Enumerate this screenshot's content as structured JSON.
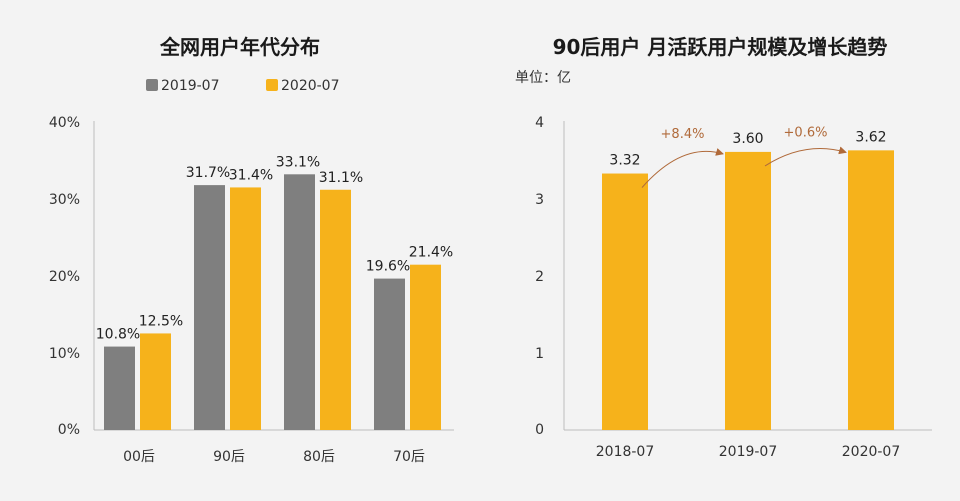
{
  "chart_data": [
    {
      "type": "bar",
      "title": "全网用户年代分布",
      "categories": [
        "00后",
        "90后",
        "80后",
        "70后"
      ],
      "series": [
        {
          "name": "2019-07",
          "values": [
            10.8,
            31.7,
            33.1,
            19.6
          ],
          "labels": [
            "10.8%",
            "31.7%",
            "33.1%",
            "19.6%"
          ],
          "color": "#7f7f7f"
        },
        {
          "name": "2020-07",
          "values": [
            12.5,
            31.4,
            31.1,
            21.4
          ],
          "labels": [
            "12.5%",
            "31.4%",
            "31.1%",
            "21.4%"
          ],
          "color": "#f6b21b"
        }
      ],
      "ylim": [
        0,
        40
      ],
      "yticks": [
        "0%",
        "10%",
        "20%",
        "30%",
        "40%"
      ],
      "legend_position": "top"
    },
    {
      "type": "bar",
      "title": "90后用户 月活跃用户规模及增长趋势",
      "unit_label": "单位：亿",
      "categories": [
        "2018-07",
        "2019-07",
        "2020-07"
      ],
      "values": [
        3.32,
        3.6,
        3.62
      ],
      "labels": [
        "3.32",
        "3.60",
        "3.62"
      ],
      "growth": [
        "+8.4%",
        "+0.6%"
      ],
      "color": "#f6b21b",
      "ylim": [
        0,
        4
      ],
      "yticks": [
        "0",
        "1",
        "2",
        "3",
        "4"
      ]
    }
  ]
}
